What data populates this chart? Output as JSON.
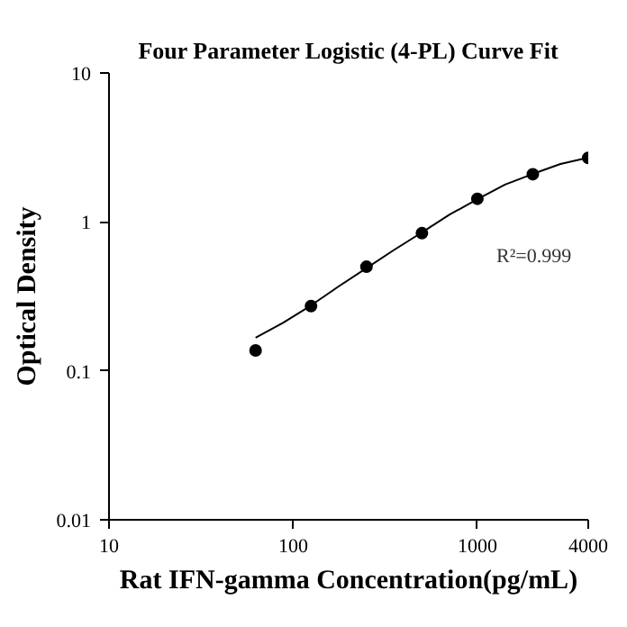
{
  "chart_data": {
    "type": "scatter",
    "title": "Four Parameter Logistic (4-PL) Curve Fit",
    "xlabel": "Rat IFN-gamma Concentration(pg/mL)",
    "ylabel": "Optical Density",
    "log": "xy",
    "grid": false,
    "marker": "circle",
    "xlim": [
      10,
      4000
    ],
    "ylim": [
      0.01,
      10
    ],
    "xticks": [
      10,
      100,
      1000,
      4000
    ],
    "yticks": [
      0.01,
      0.1,
      1,
      10
    ],
    "annotations": [
      "R²=0.999"
    ],
    "series": [
      {
        "color": "#000000",
        "x": [
          62.5,
          125,
          250,
          500,
          1000,
          2000,
          4000
        ],
        "values": [
          0.137,
          0.272,
          0.5,
          0.84,
          1.43,
          2.09,
          2.69
        ]
      },
      {
        "type": "line",
        "color": "#000000",
        "marker": "none",
        "line_style": "solid",
        "x": [
          62.5,
          88,
          125,
          177,
          250,
          354,
          500,
          707,
          1000,
          1414,
          2000,
          2828,
          4000
        ],
        "values": [
          0.167,
          0.21,
          0.275,
          0.37,
          0.49,
          0.65,
          0.85,
          1.12,
          1.42,
          1.78,
          2.1,
          2.45,
          2.7
        ]
      }
    ]
  }
}
